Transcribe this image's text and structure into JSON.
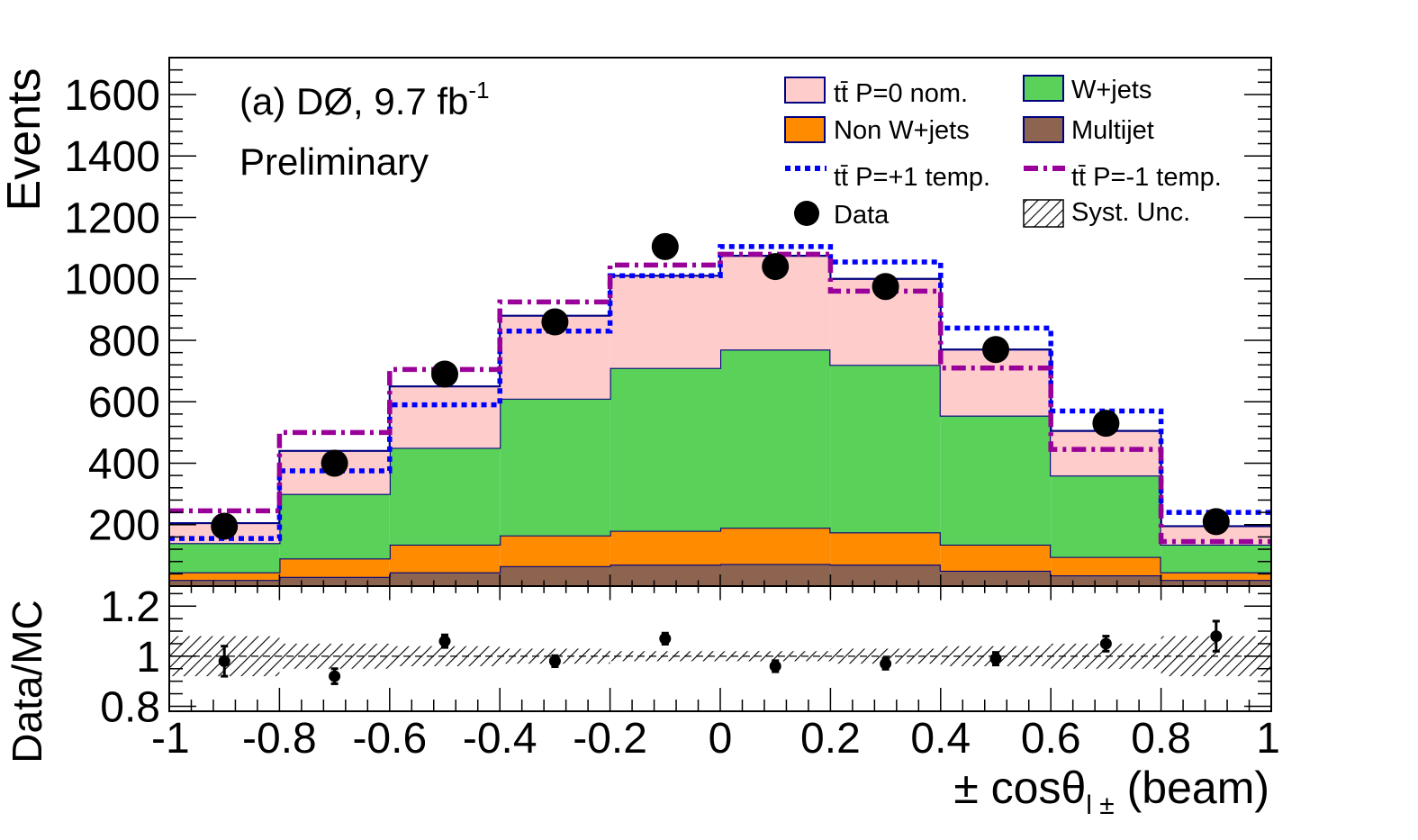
{
  "chart_data": [
    {
      "type": "bar",
      "panel": "main",
      "stacked": true,
      "annotations": {
        "experiment": "(a) DØ, 9.7 fb",
        "exponent": "-1",
        "status": "Preliminary"
      },
      "ylabel": "Events",
      "ylim": [
        0,
        1720
      ],
      "yticks": [
        200,
        400,
        600,
        800,
        1000,
        1200,
        1400,
        1600
      ],
      "bin_edges": [
        -1,
        -0.8,
        -0.6,
        -0.4,
        -0.2,
        0,
        0.2,
        0.4,
        0.6,
        0.8,
        1
      ],
      "series": [
        {
          "name": "Multijet",
          "color": "#8c6450",
          "values": [
            20,
            30,
            45,
            65,
            70,
            72,
            70,
            50,
            35,
            20
          ]
        },
        {
          "name": "Non W+jets",
          "color": "#ff8c00",
          "values": [
            25,
            60,
            90,
            100,
            110,
            118,
            105,
            85,
            60,
            25
          ]
        },
        {
          "name": "W+jets",
          "color": "#5ad25a",
          "values": [
            95,
            210,
            315,
            445,
            530,
            580,
            545,
            420,
            265,
            90
          ]
        },
        {
          "name": "tt̄ P=0 nom.",
          "color": "#ffcccc",
          "values": [
            65,
            140,
            200,
            270,
            300,
            305,
            280,
            215,
            145,
            60
          ]
        }
      ],
      "templates": [
        {
          "name": "tt̄ P=+1 temp.",
          "color": "#0000ff",
          "style": "dotted",
          "values": [
            155,
            375,
            590,
            830,
            1010,
            1105,
            1055,
            840,
            570,
            240
          ]
        },
        {
          "name": "tt̄ P=-1 temp.",
          "color": "#990099",
          "style": "dash-dot",
          "values": [
            245,
            500,
            705,
            925,
            1045,
            1080,
            960,
            710,
            445,
            145
          ]
        }
      ],
      "data_points": {
        "name": "Data",
        "x": [
          -0.9,
          -0.7,
          -0.5,
          -0.3,
          -0.1,
          0.1,
          0.3,
          0.5,
          0.7,
          0.9
        ],
        "y": [
          195,
          400,
          690,
          860,
          1105,
          1040,
          975,
          770,
          530,
          210
        ]
      },
      "legend_extra": {
        "syst_name": "Syst. Unc."
      },
      "legend_position": "top-right"
    },
    {
      "type": "scatter",
      "panel": "ratio",
      "ylabel": "Data/MC",
      "xlabel": "± cosθ",
      "xlabel_sub": "l ±",
      "xlabel_suffix": " (beam)",
      "xlim": [
        -1,
        1
      ],
      "ylim": [
        0.78,
        1.28
      ],
      "yticks": [
        0.8,
        1,
        1.2
      ],
      "xticks": [
        -1,
        -0.8,
        -0.6,
        -0.4,
        -0.2,
        0,
        0.2,
        0.4,
        0.6,
        0.8,
        1
      ],
      "xtick_labels": [
        "-1",
        "-0.8",
        "-0.6",
        "-0.4",
        "-0.2",
        "0",
        "0.2",
        "0.4",
        "0.6",
        "0.8",
        "1"
      ],
      "ytick_labels": [
        "0.8",
        "1",
        "1.2"
      ],
      "x": [
        -0.9,
        -0.7,
        -0.5,
        -0.3,
        -0.1,
        0.1,
        0.3,
        0.5,
        0.7,
        0.9
      ],
      "y": [
        0.98,
        0.92,
        1.06,
        0.98,
        1.07,
        0.96,
        0.97,
        0.99,
        1.05,
        1.08
      ],
      "yerr": [
        0.06,
        0.03,
        0.025,
        0.022,
        0.022,
        0.022,
        0.022,
        0.025,
        0.03,
        0.06
      ],
      "syst_band": [
        0.08,
        0.05,
        0.04,
        0.03,
        0.02,
        0.02,
        0.03,
        0.04,
        0.05,
        0.08
      ]
    }
  ]
}
